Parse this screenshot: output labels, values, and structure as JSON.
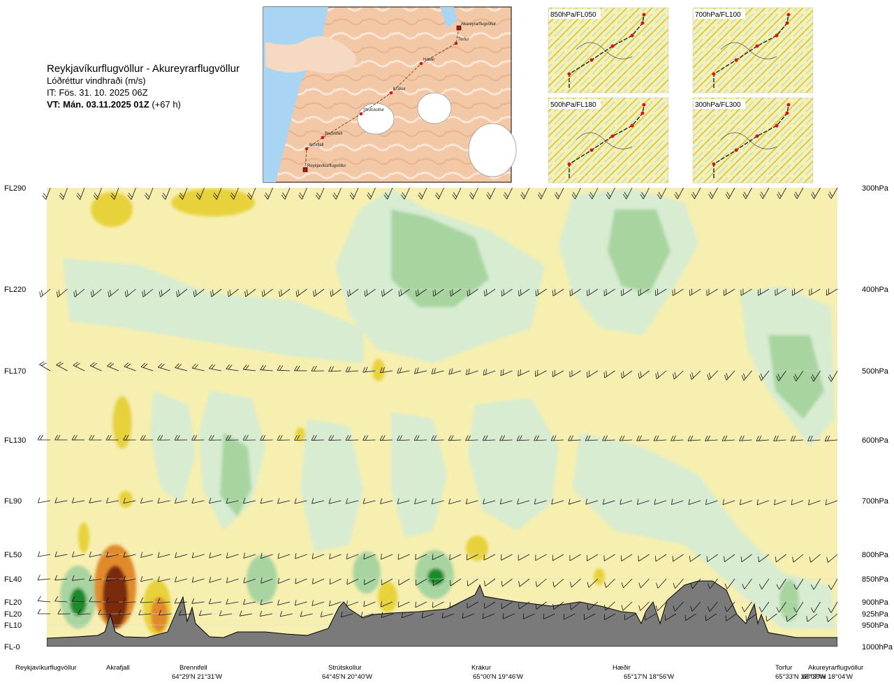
{
  "header": {
    "route_title": "Reykjavíkurflugvöllur - Akureyrarflugvöllur",
    "field": "Lóðréttur vindhraði (m/s)",
    "issue_time": "IT: Fös. 31. 10. 2025 06Z",
    "valid_time": "VT: Mán. 03.11.2025 01Z",
    "lead": "(+67 h)"
  },
  "route_map": {
    "waypoints": [
      "Akureyrarflugvöllur",
      "Torfur",
      "Hæðir",
      "Krákur",
      "Strútskollur",
      "Brennifell",
      "Akrafjall",
      "Reykjavíkurflugvöllur"
    ]
  },
  "level_panels": [
    {
      "label": "850hPa/FL050"
    },
    {
      "label": "700hPa/FL100"
    },
    {
      "label": "500hPa/FL180"
    },
    {
      "label": "300hPa/FL300"
    }
  ],
  "chart_data": {
    "type": "heatmap",
    "title": "Lóðréttur vindhraði (m/s)",
    "xlabel": "",
    "ylabel": "",
    "x_domain": [
      0,
      1
    ],
    "y_axis_left": [
      {
        "label": "FL290",
        "hpa": 300
      },
      {
        "label": "FL220",
        "hpa": 400
      },
      {
        "label": "FL170",
        "hpa": 500
      },
      {
        "label": "FL130",
        "hpa": 600
      },
      {
        "label": "FL90",
        "hpa": 700
      },
      {
        "label": "FL50",
        "hpa": 800
      },
      {
        "label": "FL40",
        "hpa": 850
      },
      {
        "label": "FL20",
        "hpa": 900
      },
      {
        "label": "FL20",
        "hpa": 925
      },
      {
        "label": "FL10",
        "hpa": 950
      },
      {
        "label": "FL-0",
        "hpa": 1000
      }
    ],
    "y_axis_right": [
      "300hPa",
      "400hPa",
      "500hPa",
      "600hPa",
      "700hPa",
      "800hPa",
      "850hPa",
      "900hPa",
      "925hPa",
      "950hPa",
      "1000hPa"
    ],
    "pressure_range": [
      1000,
      300
    ],
    "stations": [
      {
        "name": "Reykjavíkurflugvöllur",
        "coord": "",
        "frac": 0.0
      },
      {
        "name": "Akrafjall",
        "coord": "",
        "frac": 0.09
      },
      {
        "name": "Brennifell",
        "coord": "64°29'N 21°31'W",
        "frac": 0.185
      },
      {
        "name": "Strútskollur",
        "coord": "64°45'N 20°40'W",
        "frac": 0.378
      },
      {
        "name": "Krákur",
        "coord": "65°00'N 19°46'W",
        "frac": 0.56
      },
      {
        "name": "Hæðir",
        "coord": "65°17'N 18°56'W",
        "frac": 0.74
      },
      {
        "name": "Torfur",
        "coord": "65°33'N 18°07'W",
        "frac": 0.93
      },
      {
        "name": "Akureyrarflugvöllur",
        "coord": "65°39'N 18°04'W",
        "frac": 1.0
      }
    ],
    "colors": {
      "strong_down": "#7a2a10",
      "down": "#e08a2a",
      "weak_down": "#e8d23a",
      "neutral": "#f6efb0",
      "near_zero": "#f4f9e8",
      "weak_up": "#d7ecd1",
      "up": "#a8d4a0",
      "strong_up": "#1a8a2a",
      "terrain": "#7a7a7a"
    }
  }
}
